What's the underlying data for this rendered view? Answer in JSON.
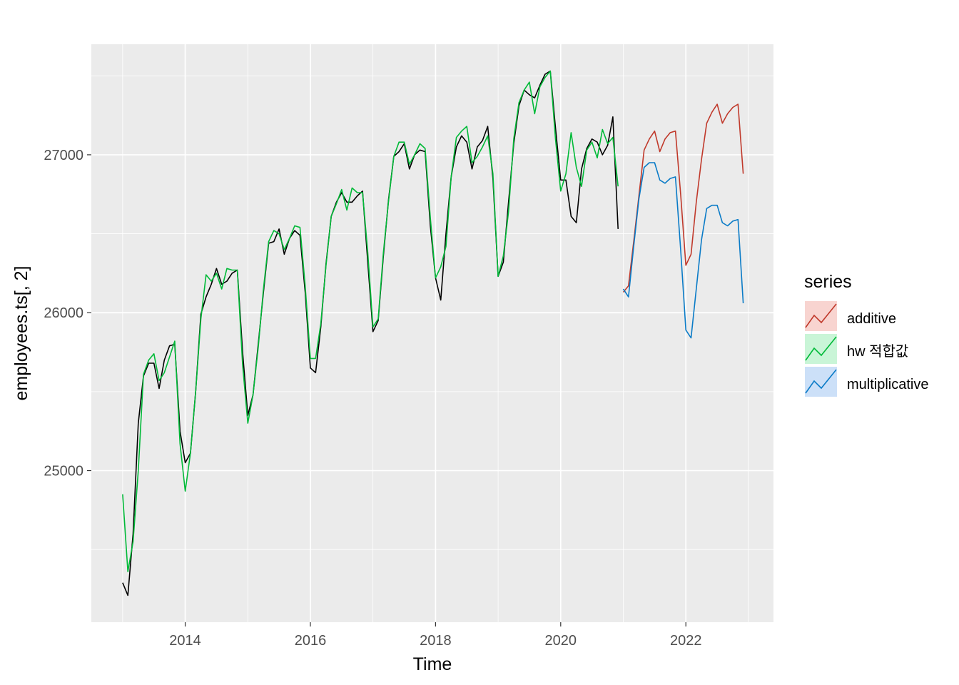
{
  "chart_data": {
    "type": "line",
    "xlabel": "Time",
    "ylabel": "employees.ts[, 2]",
    "xlim": [
      2012.5,
      2023.4
    ],
    "ylim": [
      24040,
      27700
    ],
    "x_ticks": [
      2014,
      2016,
      2018,
      2020,
      2022
    ],
    "y_ticks": [
      25000,
      26000,
      27000
    ],
    "legend": {
      "title": "series",
      "position": "right"
    },
    "actual": {
      "color": "#000000",
      "x_start": 2013.0,
      "x_step": 0.083333,
      "values": [
        24290,
        24210,
        24600,
        25300,
        25600,
        25680,
        25680,
        25520,
        25700,
        25790,
        25800,
        25250,
        25050,
        25110,
        25500,
        25990,
        26100,
        26180,
        26280,
        26180,
        26200,
        26250,
        26270,
        25750,
        25350,
        25480,
        25800,
        26130,
        26440,
        26450,
        26530,
        26370,
        26470,
        26520,
        26490,
        26130,
        25650,
        25620,
        25910,
        26310,
        26610,
        26700,
        26760,
        26700,
        26700,
        26740,
        26770,
        26320,
        25880,
        25950,
        26360,
        26720,
        26990,
        27020,
        27070,
        26910,
        27000,
        27030,
        27020,
        26550,
        26220,
        26080,
        26500,
        26860,
        27050,
        27120,
        27080,
        26910,
        27050,
        27090,
        27180,
        26850,
        26230,
        26320,
        26700,
        27070,
        27310,
        27410,
        27380,
        27360,
        27440,
        27510,
        27530,
        27170,
        26840,
        26840,
        26610,
        26570,
        26910,
        27040,
        27100,
        27080,
        27000,
        27060,
        27240,
        26530
      ]
    },
    "series": [
      {
        "name": "additive",
        "color": "#C0392B",
        "x_start": 2021.0,
        "x_step": 0.083333,
        "values": [
          26130,
          26170,
          26450,
          26740,
          27030,
          27100,
          27150,
          27020,
          27100,
          27140,
          27150,
          26750,
          26300,
          26370,
          26700,
          26970,
          27200,
          27270,
          27320,
          27200,
          27260,
          27300,
          27320,
          26880
        ]
      },
      {
        "name": "hw 적합값",
        "color": "#00BA38",
        "x_start": 2013.0,
        "x_step": 0.083333,
        "values": [
          24850,
          24360,
          24550,
          25000,
          25610,
          25700,
          25740,
          25570,
          25620,
          25720,
          25820,
          25170,
          24870,
          25110,
          25500,
          25960,
          26240,
          26200,
          26250,
          26150,
          26280,
          26270,
          26270,
          25670,
          25300,
          25480,
          25780,
          26150,
          26450,
          26520,
          26500,
          26400,
          26470,
          26550,
          26540,
          26170,
          25710,
          25710,
          25930,
          26300,
          26610,
          26690,
          26780,
          26650,
          26790,
          26760,
          26760,
          26380,
          25910,
          25960,
          26380,
          26710,
          26990,
          27080,
          27080,
          26940,
          27000,
          27070,
          27040,
          26600,
          26220,
          26290,
          26420,
          26860,
          27110,
          27150,
          27180,
          26950,
          26990,
          27050,
          27120,
          26880,
          26230,
          26360,
          26640,
          27100,
          27330,
          27410,
          27460,
          27260,
          27430,
          27490,
          27530,
          27100,
          26770,
          26880,
          27140,
          26920,
          26800,
          27030,
          27080,
          26980,
          27160,
          27070,
          27110,
          26800
        ]
      },
      {
        "name": "multiplicative",
        "color": "#0A7BC7",
        "x_start": 2021.0,
        "x_step": 0.083333,
        "values": [
          26150,
          26100,
          26420,
          26720,
          26920,
          26950,
          26950,
          26840,
          26820,
          26850,
          26860,
          26400,
          25890,
          25840,
          26150,
          26460,
          26660,
          26680,
          26680,
          26570,
          26550,
          26580,
          26590,
          26060
        ]
      }
    ]
  }
}
